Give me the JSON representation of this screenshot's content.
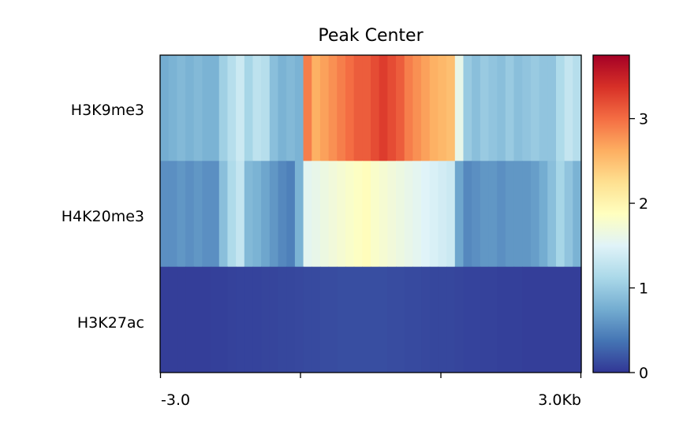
{
  "chart_data": {
    "type": "heatmap",
    "title": "Peak Center",
    "xlabel": "",
    "ylabel": "",
    "x_tick_labels": [
      "-3.0",
      "",
      "",
      "3.0Kb"
    ],
    "x_range_kb": [
      -3.0,
      3.0
    ],
    "rows": [
      "H3K9me3",
      "H4K20me3",
      "H3K27ac"
    ],
    "colormap": "RdYlBu_r",
    "color_range": [
      0,
      3.75
    ],
    "colorbar_ticks": [
      0,
      1,
      2,
      3
    ],
    "colorbar_tick_labels": [
      "0",
      "1",
      "2",
      "3"
    ],
    "profiles": [
      {
        "name": "H3K9me3",
        "values": [
          0.75,
          0.8,
          0.85,
          0.8,
          0.85,
          0.8,
          0.8,
          1.05,
          1.2,
          1.35,
          1.1,
          1.25,
          1.2,
          0.9,
          0.8,
          0.85,
          0.8,
          2.9,
          2.6,
          2.7,
          2.8,
          2.9,
          3.0,
          3.1,
          3.1,
          3.2,
          3.3,
          3.2,
          3.1,
          2.9,
          2.8,
          2.7,
          2.6,
          2.55,
          2.5,
          1.6,
          1.0,
          0.9,
          1.0,
          0.95,
          0.9,
          1.0,
          0.9,
          0.95,
          1.0,
          0.95,
          0.95,
          1.15,
          1.3,
          1.2
        ]
      },
      {
        "name": "H4K20me3",
        "values": [
          0.55,
          0.55,
          0.6,
          0.55,
          0.6,
          0.55,
          0.55,
          0.9,
          1.15,
          1.3,
          0.85,
          0.8,
          0.7,
          0.6,
          0.5,
          0.45,
          0.8,
          1.55,
          1.6,
          1.65,
          1.7,
          1.75,
          1.8,
          1.85,
          1.9,
          1.8,
          1.75,
          1.7,
          1.65,
          1.6,
          1.55,
          1.5,
          1.45,
          1.4,
          1.35,
          0.7,
          0.5,
          0.55,
          0.6,
          0.6,
          0.55,
          0.6,
          0.6,
          0.6,
          0.65,
          0.75,
          0.9,
          1.1,
          0.95,
          0.8
        ]
      },
      {
        "name": "H3K27ac",
        "values": [
          0.05,
          0.05,
          0.05,
          0.05,
          0.05,
          0.05,
          0.06,
          0.06,
          0.07,
          0.08,
          0.08,
          0.08,
          0.09,
          0.09,
          0.1,
          0.1,
          0.11,
          0.12,
          0.12,
          0.13,
          0.13,
          0.14,
          0.14,
          0.14,
          0.14,
          0.14,
          0.14,
          0.13,
          0.13,
          0.12,
          0.12,
          0.11,
          0.1,
          0.1,
          0.1,
          0.09,
          0.08,
          0.08,
          0.07,
          0.07,
          0.06,
          0.06,
          0.06,
          0.05,
          0.05,
          0.05,
          0.05,
          0.05,
          0.05,
          0.05
        ]
      }
    ],
    "grid": false,
    "legend": "colorbar-right"
  }
}
